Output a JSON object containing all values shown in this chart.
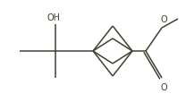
{
  "bg_color": "#ffffff",
  "line_color": "#404030",
  "line_width": 1.1,
  "text_color": "#404030",
  "font_size": 7.0,
  "figsize": [
    2.08,
    1.15
  ],
  "dpi": 100,
  "OH_label": "OH",
  "O_ester_label": "O",
  "O_carbonyl_label": "O"
}
